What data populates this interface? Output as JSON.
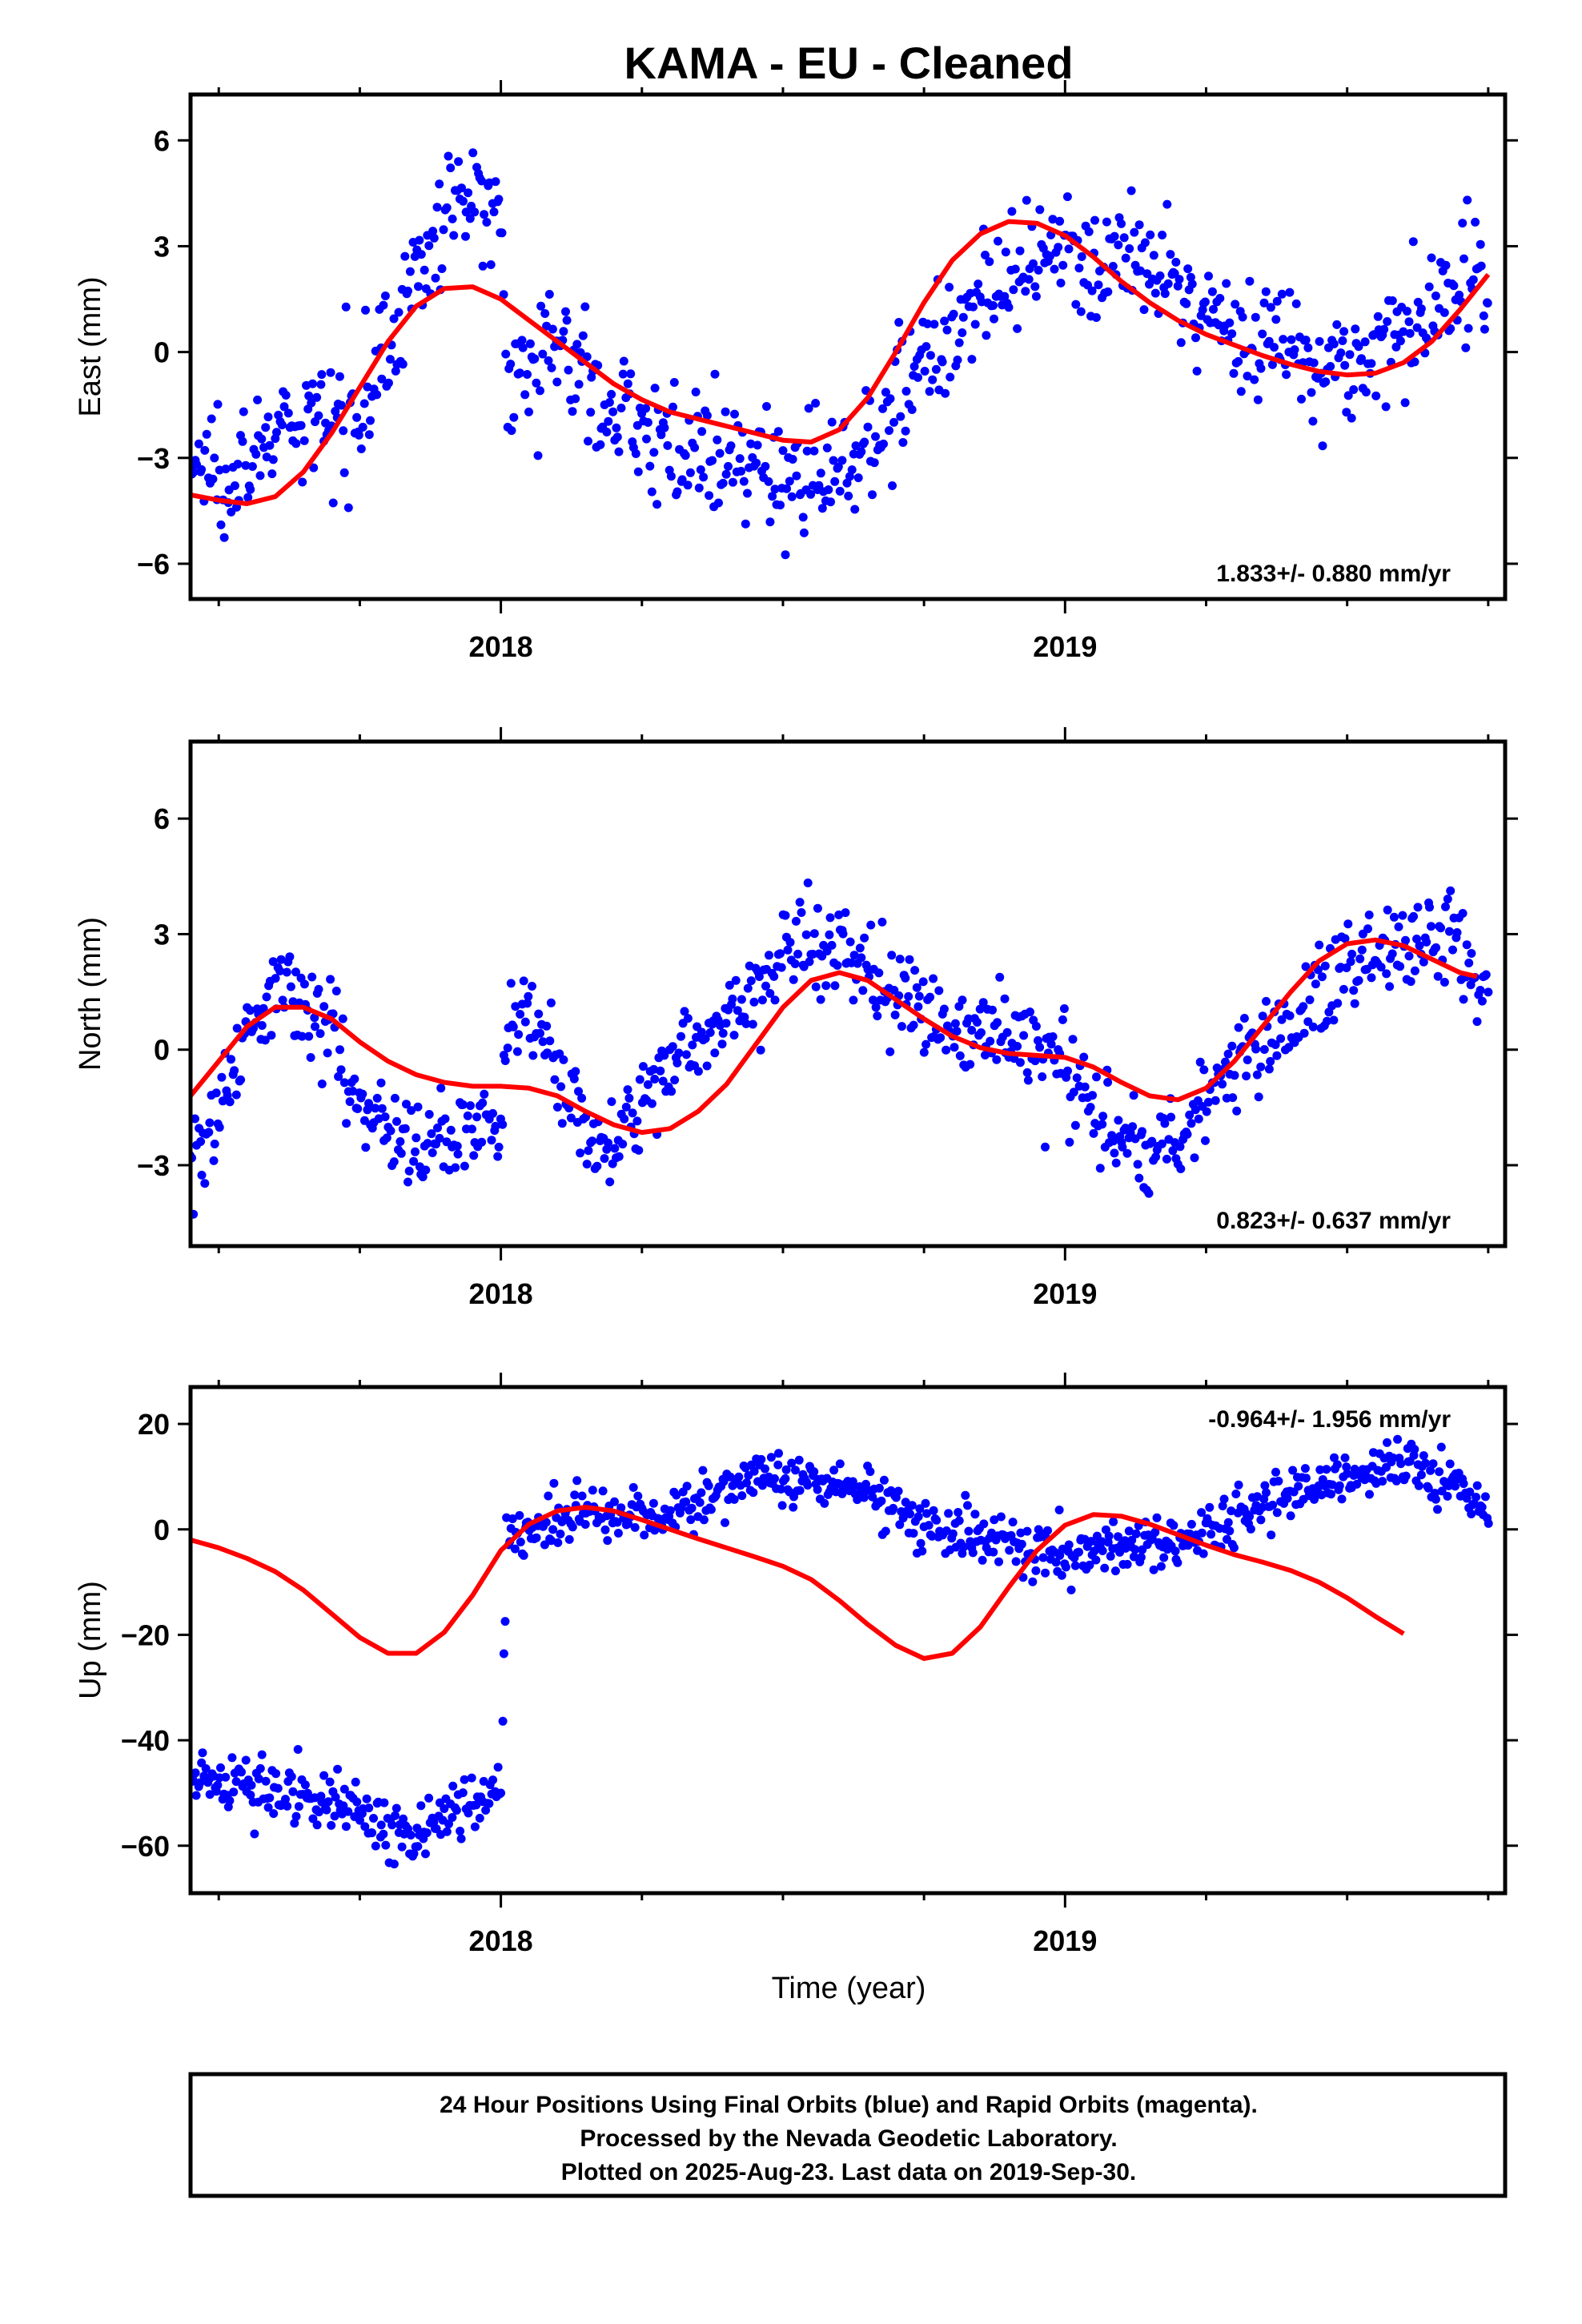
{
  "title": "KAMA  - EU - Cleaned",
  "x_axis": {
    "label": "Time (year)",
    "range": [
      2017.45,
      2019.78
    ],
    "major_ticks": [
      2018,
      2019
    ],
    "major_tick_labels": [
      "2018",
      "2019"
    ],
    "minor_ticks": [
      2017.5,
      2017.75,
      2018.25,
      2018.5,
      2018.75,
      2019.25,
      2019.5,
      2019.75
    ]
  },
  "footer": {
    "line1": "24 Hour Positions Using Final Orbits (blue) and Rapid Orbits (magenta).",
    "line2": "Processed by the Nevada Geodetic Laboratory.",
    "line3": "Plotted on 2025-Aug-23. Last data on 2019-Sep-30."
  },
  "colors": {
    "points": "#0000ff",
    "model": "#ff0000",
    "frame": "#000000"
  },
  "chart_data": [
    {
      "type": "scatter",
      "ylabel": "East (mm)",
      "ylim": [
        -7,
        7.3
      ],
      "yticks": [
        -6,
        -3,
        0,
        3,
        6
      ],
      "ytick_labels": [
        "−6",
        "−3",
        "0",
        "3",
        "6"
      ],
      "rate_label": "1.833+/- 0.880 mm/yr",
      "rate_position": "bottom-right",
      "series": [
        {
          "trend": "points",
          "anchors": [
            [
              2017.45,
              -3.3
            ],
            [
              2017.55,
              -3.0
            ],
            [
              2017.62,
              -2.3
            ],
            [
              2017.7,
              -2.0
            ],
            [
              2017.78,
              -0.5
            ],
            [
              2017.86,
              2.5
            ],
            [
              2017.93,
              4.3
            ],
            [
              2018.0,
              4.2
            ],
            [
              2018.01,
              -0.5
            ],
            [
              2018.1,
              0.2
            ],
            [
              2018.2,
              -1.6
            ],
            [
              2018.3,
              -2.6
            ],
            [
              2018.4,
              -3.3
            ],
            [
              2018.5,
              -3.4
            ],
            [
              2018.6,
              -3.4
            ],
            [
              2018.7,
              -1.3
            ],
            [
              2018.8,
              0.8
            ],
            [
              2018.9,
              1.9
            ],
            [
              2019.0,
              2.6
            ],
            [
              2019.1,
              2.7
            ],
            [
              2019.2,
              1.7
            ],
            [
              2019.3,
              0.6
            ],
            [
              2019.4,
              0.2
            ],
            [
              2019.5,
              -0.5
            ],
            [
              2019.6,
              0.4
            ],
            [
              2019.7,
              1.8
            ],
            [
              2019.75,
              2.4
            ]
          ],
          "sd": 0.85,
          "n": 800
        },
        {
          "trend": "model",
          "values": [
            [
              2017.45,
              -4.05
            ],
            [
              2017.5,
              -4.2
            ],
            [
              2017.55,
              -4.3
            ],
            [
              2017.6,
              -4.1
            ],
            [
              2017.65,
              -3.4
            ],
            [
              2017.7,
              -2.3
            ],
            [
              2017.75,
              -1.0
            ],
            [
              2017.8,
              0.3
            ],
            [
              2017.85,
              1.3
            ],
            [
              2017.9,
              1.8
            ],
            [
              2017.95,
              1.85
            ],
            [
              2018.0,
              1.5
            ],
            [
              2018.05,
              0.9
            ],
            [
              2018.1,
              0.3
            ],
            [
              2018.15,
              -0.3
            ],
            [
              2018.2,
              -0.9
            ],
            [
              2018.25,
              -1.35
            ],
            [
              2018.3,
              -1.7
            ],
            [
              2018.35,
              -1.9
            ],
            [
              2018.4,
              -2.1
            ],
            [
              2018.45,
              -2.3
            ],
            [
              2018.5,
              -2.5
            ],
            [
              2018.55,
              -2.55
            ],
            [
              2018.6,
              -2.2
            ],
            [
              2018.65,
              -1.3
            ],
            [
              2018.7,
              0.0
            ],
            [
              2018.75,
              1.4
            ],
            [
              2018.8,
              2.6
            ],
            [
              2018.85,
              3.35
            ],
            [
              2018.9,
              3.7
            ],
            [
              2018.95,
              3.65
            ],
            [
              2019.0,
              3.3
            ],
            [
              2019.05,
              2.7
            ],
            [
              2019.1,
              2.0
            ],
            [
              2019.15,
              1.4
            ],
            [
              2019.2,
              0.9
            ],
            [
              2019.25,
              0.5
            ],
            [
              2019.3,
              0.2
            ],
            [
              2019.35,
              -0.1
            ],
            [
              2019.4,
              -0.35
            ],
            [
              2019.45,
              -0.55
            ],
            [
              2019.5,
              -0.65
            ],
            [
              2019.55,
              -0.6
            ],
            [
              2019.6,
              -0.3
            ],
            [
              2019.65,
              0.3
            ],
            [
              2019.7,
              1.2
            ],
            [
              2019.75,
              2.2
            ]
          ]
        }
      ]
    },
    {
      "type": "scatter",
      "ylabel": "North (mm)",
      "ylim": [
        -5.1,
        8.0
      ],
      "yticks": [
        -3,
        0,
        3,
        6
      ],
      "ytick_labels": [
        "−3",
        "0",
        "3",
        "6"
      ],
      "rate_label": "0.823+/- 0.637 mm/yr",
      "rate_position": "bottom-right",
      "series": [
        {
          "trend": "points",
          "anchors": [
            [
              2017.45,
              -2.8
            ],
            [
              2017.5,
              -1.5
            ],
            [
              2017.55,
              0.3
            ],
            [
              2017.6,
              1.8
            ],
            [
              2017.65,
              1.5
            ],
            [
              2017.7,
              0.4
            ],
            [
              2017.75,
              -1.0
            ],
            [
              2017.8,
              -1.9
            ],
            [
              2017.85,
              -2.4
            ],
            [
              2017.9,
              -2.2
            ],
            [
              2017.95,
              -2.1
            ],
            [
              2018.0,
              -2.2
            ],
            [
              2018.01,
              0.5
            ],
            [
              2018.06,
              1.3
            ],
            [
              2018.1,
              -0.8
            ],
            [
              2018.15,
              -1.9
            ],
            [
              2018.2,
              -2.6
            ],
            [
              2018.25,
              -1.6
            ],
            [
              2018.3,
              -0.2
            ],
            [
              2018.35,
              0.4
            ],
            [
              2018.4,
              0.8
            ],
            [
              2018.45,
              1.5
            ],
            [
              2018.5,
              2.5
            ],
            [
              2018.55,
              2.9
            ],
            [
              2018.6,
              2.5
            ],
            [
              2018.65,
              2.0
            ],
            [
              2018.7,
              1.4
            ],
            [
              2018.75,
              1.0
            ],
            [
              2018.8,
              0.8
            ],
            [
              2018.85,
              0.6
            ],
            [
              2018.9,
              0.3
            ],
            [
              2018.95,
              0.0
            ],
            [
              2019.0,
              -0.5
            ],
            [
              2019.05,
              -1.5
            ],
            [
              2019.1,
              -2.5
            ],
            [
              2019.15,
              -2.7
            ],
            [
              2019.2,
              -2.3
            ],
            [
              2019.25,
              -1.2
            ],
            [
              2019.3,
              -0.4
            ],
            [
              2019.35,
              0.3
            ],
            [
              2019.4,
              0.8
            ],
            [
              2019.45,
              1.5
            ],
            [
              2019.5,
              2.2
            ],
            [
              2019.55,
              2.6
            ],
            [
              2019.6,
              2.9
            ],
            [
              2019.65,
              3.0
            ],
            [
              2019.7,
              2.5
            ],
            [
              2019.75,
              1.5
            ]
          ],
          "sd": 0.6,
          "n": 800
        },
        {
          "trend": "model",
          "values": [
            [
              2017.45,
              -1.2
            ],
            [
              2017.5,
              -0.3
            ],
            [
              2017.55,
              0.6
            ],
            [
              2017.6,
              1.1
            ],
            [
              2017.65,
              1.1
            ],
            [
              2017.7,
              0.8
            ],
            [
              2017.75,
              0.2
            ],
            [
              2017.8,
              -0.3
            ],
            [
              2017.85,
              -0.65
            ],
            [
              2017.9,
              -0.85
            ],
            [
              2017.95,
              -0.95
            ],
            [
              2018.0,
              -0.95
            ],
            [
              2018.05,
              -1.0
            ],
            [
              2018.1,
              -1.2
            ],
            [
              2018.15,
              -1.6
            ],
            [
              2018.2,
              -1.95
            ],
            [
              2018.25,
              -2.15
            ],
            [
              2018.3,
              -2.05
            ],
            [
              2018.35,
              -1.6
            ],
            [
              2018.4,
              -0.9
            ],
            [
              2018.45,
              0.1
            ],
            [
              2018.5,
              1.1
            ],
            [
              2018.55,
              1.8
            ],
            [
              2018.6,
              2.0
            ],
            [
              2018.65,
              1.8
            ],
            [
              2018.7,
              1.3
            ],
            [
              2018.75,
              0.8
            ],
            [
              2018.8,
              0.35
            ],
            [
              2018.85,
              0.05
            ],
            [
              2018.9,
              -0.1
            ],
            [
              2018.95,
              -0.15
            ],
            [
              2019.0,
              -0.2
            ],
            [
              2019.05,
              -0.45
            ],
            [
              2019.1,
              -0.85
            ],
            [
              2019.15,
              -1.2
            ],
            [
              2019.2,
              -1.3
            ],
            [
              2019.25,
              -1.0
            ],
            [
              2019.3,
              -0.3
            ],
            [
              2019.35,
              0.6
            ],
            [
              2019.4,
              1.5
            ],
            [
              2019.45,
              2.3
            ],
            [
              2019.5,
              2.75
            ],
            [
              2019.55,
              2.85
            ],
            [
              2019.6,
              2.7
            ],
            [
              2019.65,
              2.35
            ],
            [
              2019.7,
              2.0
            ],
            [
              2019.73,
              1.9
            ]
          ]
        }
      ]
    },
    {
      "type": "scatter",
      "ylabel": "Up (mm)",
      "ylim": [
        -69,
        27
      ],
      "yticks": [
        -60,
        -40,
        -20,
        0,
        20
      ],
      "ytick_labels": [
        "−60",
        "−40",
        "−20",
        "0",
        "20"
      ],
      "rate_label": "-0.964+/- 1.956 mm/yr",
      "rate_position": "top-right",
      "series": [
        {
          "trend": "points",
          "anchors": [
            [
              2017.45,
              -48
            ],
            [
              2017.55,
              -48
            ],
            [
              2017.65,
              -51
            ],
            [
              2017.72,
              -52
            ],
            [
              2017.8,
              -56
            ],
            [
              2017.85,
              -58
            ],
            [
              2017.9,
              -53
            ],
            [
              2018.0,
              -52
            ],
            [
              2018.01,
              -2
            ],
            [
              2018.05,
              -1
            ],
            [
              2018.1,
              1
            ],
            [
              2018.2,
              3
            ],
            [
              2018.3,
              3
            ],
            [
              2018.35,
              5
            ],
            [
              2018.45,
              11
            ],
            [
              2018.55,
              8
            ],
            [
              2018.6,
              8
            ],
            [
              2018.65,
              6
            ],
            [
              2018.75,
              1
            ],
            [
              2018.85,
              -1
            ],
            [
              2018.95,
              -3
            ],
            [
              2019.0,
              -5
            ],
            [
              2019.1,
              -3
            ],
            [
              2019.2,
              -2
            ],
            [
              2019.3,
              2
            ],
            [
              2019.4,
              6
            ],
            [
              2019.5,
              10
            ],
            [
              2019.6,
              13
            ],
            [
              2019.7,
              8
            ],
            [
              2019.75,
              3
            ]
          ],
          "sd": 2.6,
          "n": 850
        },
        {
          "trend": "model",
          "values": [
            [
              2017.45,
              -2
            ],
            [
              2017.5,
              -3.5
            ],
            [
              2017.55,
              -5.5
            ],
            [
              2017.6,
              -8
            ],
            [
              2017.65,
              -11.5
            ],
            [
              2017.7,
              -16
            ],
            [
              2017.75,
              -20.5
            ],
            [
              2017.8,
              -23.5
            ],
            [
              2017.85,
              -23.5
            ],
            [
              2017.9,
              -19.5
            ],
            [
              2017.95,
              -12.5
            ],
            [
              2018.0,
              -4
            ],
            [
              2018.05,
              1
            ],
            [
              2018.1,
              3.5
            ],
            [
              2018.15,
              4.2
            ],
            [
              2018.2,
              3.5
            ],
            [
              2018.25,
              1.8
            ],
            [
              2018.3,
              0
            ],
            [
              2018.35,
              -1.8
            ],
            [
              2018.4,
              -3.5
            ],
            [
              2018.45,
              -5.2
            ],
            [
              2018.5,
              -7
            ],
            [
              2018.55,
              -9.5
            ],
            [
              2018.6,
              -13.5
            ],
            [
              2018.65,
              -18
            ],
            [
              2018.7,
              -22
            ],
            [
              2018.75,
              -24.5
            ],
            [
              2018.8,
              -23.5
            ],
            [
              2018.85,
              -18.5
            ],
            [
              2018.9,
              -11
            ],
            [
              2018.95,
              -4
            ],
            [
              2019.0,
              0.8
            ],
            [
              2019.05,
              2.8
            ],
            [
              2019.1,
              2.5
            ],
            [
              2019.15,
              1
            ],
            [
              2019.2,
              -1
            ],
            [
              2019.25,
              -3
            ],
            [
              2019.3,
              -4.8
            ],
            [
              2019.35,
              -6.2
            ],
            [
              2019.4,
              -7.8
            ],
            [
              2019.45,
              -10
            ],
            [
              2019.5,
              -13
            ],
            [
              2019.55,
              -16.5
            ],
            [
              2019.6,
              -19.8
            ]
          ]
        }
      ]
    }
  ]
}
